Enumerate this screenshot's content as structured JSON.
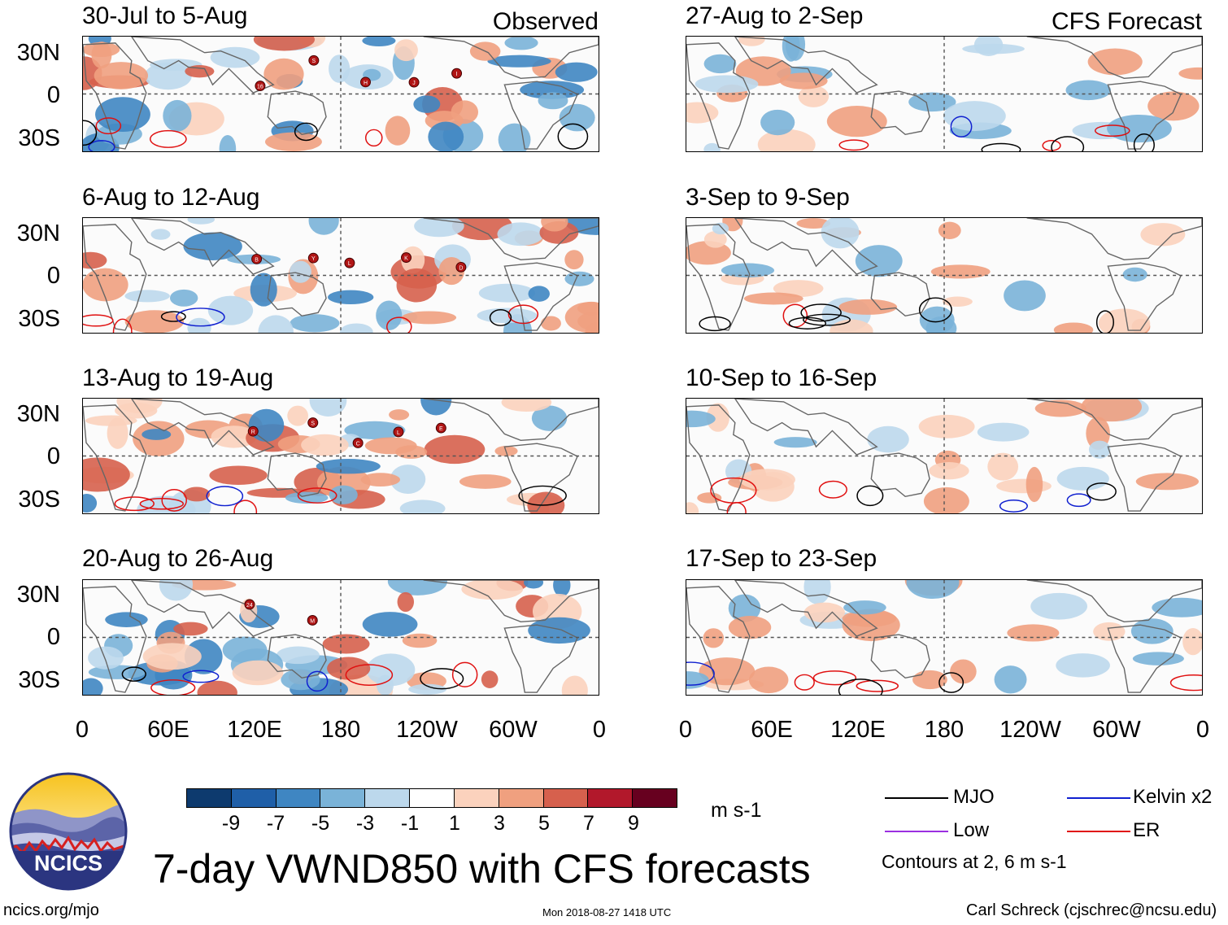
{
  "left_column": {
    "header_right": "Observed",
    "panels": [
      {
        "title": "30-Jul to 5-Aug"
      },
      {
        "title": "6-Aug to 12-Aug"
      },
      {
        "title": "13-Aug to 19-Aug"
      },
      {
        "title": "20-Aug to 26-Aug"
      }
    ]
  },
  "right_column": {
    "header_right": "CFS Forecast",
    "panels": [
      {
        "title": "27-Aug to 2-Sep"
      },
      {
        "title": "3-Sep to 9-Sep"
      },
      {
        "title": "10-Sep to 16-Sep"
      },
      {
        "title": "17-Sep to 23-Sep"
      }
    ]
  },
  "lat_labels": [
    "30N",
    "0",
    "30S"
  ],
  "lon_labels": [
    "0",
    "60E",
    "120E",
    "180",
    "120W",
    "60W",
    "0"
  ],
  "colorbar": {
    "unit": "m s-1",
    "ticks": [
      "-9",
      "-7",
      "-5",
      "-3",
      "-1",
      "1",
      "3",
      "5",
      "7",
      "9"
    ],
    "colors": [
      "#0d3a6e",
      "#1f5fa8",
      "#3f86c2",
      "#7ab3d8",
      "#bcd8ec",
      "#ffffff",
      "#fbd2bd",
      "#f0a07f",
      "#d6604d",
      "#b2182b",
      "#67001f"
    ]
  },
  "legend": {
    "items": [
      {
        "label": "MJO",
        "color": "#000000"
      },
      {
        "label": "Kelvin x2",
        "color": "#1020d0"
      },
      {
        "label": "Low",
        "color": "#9b30e0"
      },
      {
        "label": "ER",
        "color": "#e01010"
      }
    ],
    "contours_note": "Contours at 2, 6 m s-1"
  },
  "main_title": "7-day VWND850 with CFS forecasts",
  "logo_text": "NCICS",
  "footer": {
    "url": "ncics.org/mjo",
    "timestamp": "Mon 2018-08-27 1418 UTC",
    "author": "Carl Schreck (cjschrec@ncsu.edu)"
  },
  "storms": [
    [
      {
        "label": "16"
      },
      {
        "label": "S"
      },
      {
        "label": "H"
      },
      {
        "label": "J"
      },
      {
        "label": "I"
      }
    ],
    [
      {
        "label": "B"
      },
      {
        "label": "Y"
      },
      {
        "label": "L"
      },
      {
        "label": "K"
      },
      {
        "label": "D"
      }
    ],
    [
      {
        "label": "R"
      },
      {
        "label": "S"
      },
      {
        "label": "C"
      },
      {
        "label": "L"
      },
      {
        "label": "E"
      }
    ],
    [
      {
        "label": "24"
      },
      {
        "label": "M"
      }
    ]
  ]
}
